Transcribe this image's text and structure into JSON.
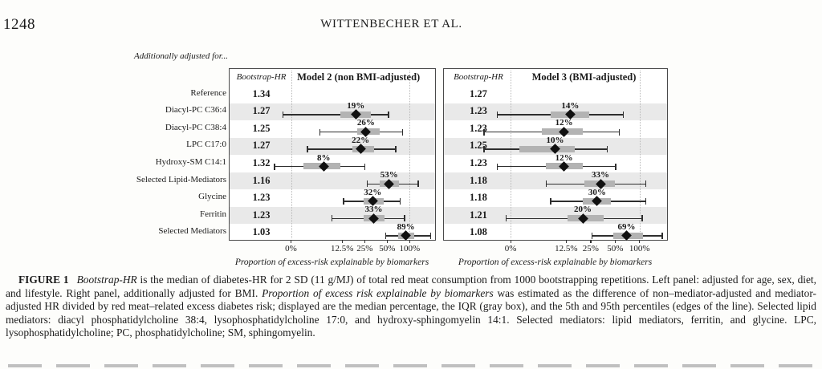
{
  "page": {
    "page_number": "1248",
    "running_head": "WITTENBECHER ET AL."
  },
  "figure": {
    "note": "Additionally adjusted for...",
    "row_labels": [
      "Reference",
      "Diacyl-PC C36:4",
      "Diacyl-PC C38:4",
      "LPC C17:0",
      "Hydroxy-SM C14:1",
      "Selected Lipid-Mediators",
      "Glycine",
      "Ferritin",
      "Selected Mediators"
    ],
    "hr_column_header": "Bootstrap-HR",
    "xaxis_tick_labels": [
      "0%",
      "12.5%",
      "25%",
      "50%",
      "100%"
    ],
    "xaxis_title": "Proportion of excess-risk explainable by biomarkers"
  },
  "chart_data": [
    {
      "type": "forest",
      "title": "Model 2 (non BMI-adjusted)",
      "hr_column_header": "Bootstrap-HR",
      "xlabel": "Proportion of excess-risk explainable by biomarkers",
      "xticks": [
        0,
        12.5,
        25,
        50,
        100
      ],
      "xscale_note": "log2 spacing above 12.5%, compressed linear segment from 0 to 12.5%",
      "grid_at": [
        0,
        100
      ],
      "rows": [
        {
          "category": "Reference",
          "bootstrap_hr": "1.34",
          "median_pct": null,
          "pct_label": null,
          "iqr": null,
          "ci_5_95": null
        },
        {
          "category": "Diacyl-PC C36:4",
          "bootstrap_hr": "1.27",
          "median_pct": 19,
          "pct_label": "19%",
          "iqr": [
            12,
            30
          ],
          "ci_5_95": [
            -2,
            52
          ]
        },
        {
          "category": "Diacyl-PC C38:4",
          "bootstrap_hr": "1.25",
          "median_pct": 26,
          "pct_label": "26%",
          "iqr": [
            20,
            40
          ],
          "ci_5_95": [
            7,
            80
          ]
        },
        {
          "category": "LPC C17:0",
          "bootstrap_hr": "1.27",
          "median_pct": 22,
          "pct_label": "22%",
          "iqr": [
            17,
            33
          ],
          "ci_5_95": [
            4,
            65
          ]
        },
        {
          "category": "Hydroxy-SM C14:1",
          "bootstrap_hr": "1.32",
          "median_pct": 8,
          "pct_label": "8%",
          "iqr": [
            3,
            12
          ],
          "ci_5_95": [
            -4,
            25
          ]
        },
        {
          "category": "Selected Lipid-Mediators",
          "bootstrap_hr": "1.16",
          "median_pct": 53,
          "pct_label": "53%",
          "iqr": [
            40,
            72
          ],
          "ci_5_95": [
            27,
            130
          ]
        },
        {
          "category": "Glycine",
          "bootstrap_hr": "1.23",
          "median_pct": 32,
          "pct_label": "32%",
          "iqr": [
            24,
            45
          ],
          "ci_5_95": [
            13,
            75
          ]
        },
        {
          "category": "Ferritin",
          "bootstrap_hr": "1.23",
          "median_pct": 33,
          "pct_label": "33%",
          "iqr": [
            24,
            46
          ],
          "ci_5_95": [
            10,
            85
          ]
        },
        {
          "category": "Selected Mediators",
          "bootstrap_hr": "1.03",
          "median_pct": 89,
          "pct_label": "89%",
          "iqr": [
            70,
            115
          ],
          "ci_5_95": [
            48,
            190
          ]
        }
      ]
    },
    {
      "type": "forest",
      "title": "Model 3 (BMI-adjusted)",
      "hr_column_header": "Bootstrap-HR",
      "xlabel": "Proportion of excess-risk explainable by biomarkers",
      "xticks": [
        0,
        12.5,
        25,
        50,
        100
      ],
      "xscale_note": "log2 spacing above 12.5%, compressed linear segment from 0 to 12.5%",
      "grid_at": [
        0,
        100
      ],
      "rows": [
        {
          "category": "Reference",
          "bootstrap_hr": "1.27",
          "median_pct": null,
          "pct_label": null,
          "iqr": null,
          "ci_5_95": null
        },
        {
          "category": "Diacyl-PC C36:4",
          "bootstrap_hr": "1.23",
          "median_pct": 14,
          "pct_label": "14%",
          "iqr": [
            9,
            24
          ],
          "ci_5_95": [
            -3,
            63
          ]
        },
        {
          "category": "Diacyl-PC C38:4",
          "bootstrap_hr": "1.23",
          "median_pct": 12,
          "pct_label": "12%",
          "iqr": [
            7,
            20
          ],
          "ci_5_95": [
            -6,
            56
          ]
        },
        {
          "category": "LPC C17:0",
          "bootstrap_hr": "1.25",
          "median_pct": 10,
          "pct_label": "10%",
          "iqr": [
            2,
            16
          ],
          "ci_5_95": [
            -6,
            40
          ]
        },
        {
          "category": "Hydroxy-SM C14:1",
          "bootstrap_hr": "1.23",
          "median_pct": 12,
          "pct_label": "12%",
          "iqr": [
            8,
            20
          ],
          "ci_5_95": [
            -3,
            51
          ]
        },
        {
          "category": "Selected Lipid-Mediators",
          "bootstrap_hr": "1.18",
          "median_pct": 33,
          "pct_label": "33%",
          "iqr": [
            21,
            50
          ],
          "ci_5_95": [
            8,
            120
          ]
        },
        {
          "category": "Glycine",
          "bootstrap_hr": "1.18",
          "median_pct": 30,
          "pct_label": "30%",
          "iqr": [
            20,
            44
          ],
          "ci_5_95": [
            9,
            120
          ]
        },
        {
          "category": "Ferritin",
          "bootstrap_hr": "1.21",
          "median_pct": 20,
          "pct_label": "20%",
          "iqr": [
            13,
            36
          ],
          "ci_5_95": [
            -1,
            108
          ]
        },
        {
          "category": "Selected Mediators",
          "bootstrap_hr": "1.08",
          "median_pct": 69,
          "pct_label": "69%",
          "iqr": [
            48,
            110
          ],
          "ci_5_95": [
            26,
            190
          ]
        }
      ]
    }
  ],
  "caption": {
    "segments": [
      {
        "text": "FIGURE 1",
        "style": "bold"
      },
      {
        "text": "",
        "style": "gap"
      },
      {
        "text": "Bootstrap-HR",
        "style": "italic"
      },
      {
        "text": " is the median of diabetes-HR for 2 SD (11 g/MJ) of total red meat consumption from 1000 bootstrapping repetitions. Left panel: adjusted for age, sex, diet, and lifestyle. Right panel, additionally adjusted for BMI. ",
        "style": "plain"
      },
      {
        "text": "Proportion of excess risk explainable by biomarkers",
        "style": "italic"
      },
      {
        "text": " was estimated as the difference of non–mediator-adjusted and mediator-adjusted HR divided by red meat–related excess diabetes risk; displayed are the median percentage, the IQR (gray box), and the 5th and 95th percentiles (edges of the line). Selected lipid mediators: diacyl phosphatidylcholine 38:4, lysophosphatidylcholine 17:0, and hydroxy-sphingomyelin 14:1. Selected mediators: lipid mediators, ferritin, and glycine. LPC, lysophosphatidylcholine; PC, phosphatidylcholine; SM, sphingomyelin.",
        "style": "plain"
      }
    ]
  }
}
